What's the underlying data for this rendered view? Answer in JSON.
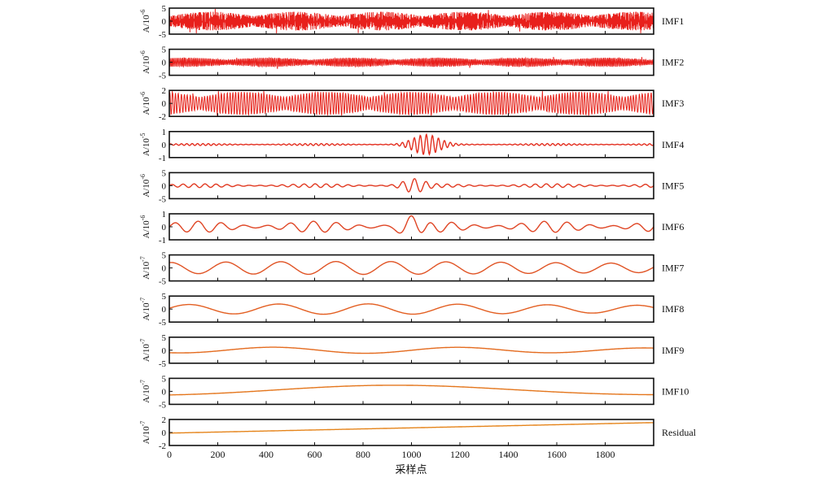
{
  "chart_data": {
    "type": "line",
    "xlabel": "采样点",
    "xlim": [
      0,
      2000
    ],
    "x_ticks": [
      "0",
      "200",
      "400",
      "600",
      "800",
      "1000",
      "1200",
      "1400",
      "1600",
      "1800"
    ],
    "panels": [
      {
        "name": "IMF1",
        "ylabel_base": "A/10",
        "ylabel_exp": "-6",
        "yticks": [
          "5",
          "0",
          "-5"
        ],
        "ylim": [
          -5,
          5
        ],
        "color": "#e8201c",
        "signal": {
          "kind": "noise",
          "amp": 0.45,
          "freq": 0.35
        }
      },
      {
        "name": "IMF2",
        "ylabel_base": "A/10",
        "ylabel_exp": "-6",
        "yticks": [
          "5",
          "0",
          "-5"
        ],
        "ylim": [
          -5,
          5
        ],
        "color": "#e8201c",
        "signal": {
          "kind": "noise",
          "amp": 0.22,
          "freq": 0.17
        }
      },
      {
        "name": "IMF3",
        "ylabel_base": "A/10",
        "ylabel_exp": "-6",
        "yticks": [
          "2",
          "0",
          "-2"
        ],
        "ylim": [
          -2,
          2
        ],
        "color": "#e6251d",
        "signal": {
          "kind": "noise",
          "amp": 0.55,
          "freq": 0.085
        }
      },
      {
        "name": "IMF4",
        "ylabel_base": "A/10",
        "ylabel_exp": "-5",
        "yticks": [
          "1",
          "0",
          "-1"
        ],
        "ylim": [
          -1,
          1
        ],
        "color": "#e32f20",
        "signal": {
          "kind": "burst",
          "amp": 0.08,
          "freq": 0.045,
          "burst_center": 1060,
          "burst_width": 70,
          "burst_amp": 0.9
        }
      },
      {
        "name": "IMF5",
        "ylabel_base": "A/10",
        "ylabel_exp": "-6",
        "yticks": [
          "5",
          "0",
          "-5"
        ],
        "ylim": [
          -5,
          5
        ],
        "color": "#e13a22",
        "signal": {
          "kind": "burst",
          "amp": 0.15,
          "freq": 0.022,
          "burst_center": 1010,
          "burst_width": 60,
          "burst_amp": 0.45
        }
      },
      {
        "name": "IMF6",
        "ylabel_base": "A/10",
        "ylabel_exp": "-6",
        "yticks": [
          "1",
          "0",
          "-1"
        ],
        "ylim": [
          -1,
          1
        ],
        "color": "#df4524",
        "signal": {
          "kind": "burst",
          "amp": 0.45,
          "freq": 0.0105,
          "burst_center": 1000,
          "burst_width": 60,
          "burst_amp": 0.95
        }
      },
      {
        "name": "IMF7",
        "ylabel_base": "A/10",
        "ylabel_exp": "-7",
        "yticks": [
          "5",
          "0",
          "-5"
        ],
        "ylim": [
          -5,
          5
        ],
        "color": "#e05324",
        "signal": {
          "kind": "wave",
          "amp": 0.52,
          "freq": 0.0044,
          "phase": 1.4
        }
      },
      {
        "name": "IMF8",
        "ylabel_base": "A/10",
        "ylabel_exp": "-7",
        "yticks": [
          "5",
          "0",
          "-5"
        ],
        "ylim": [
          -5,
          5
        ],
        "color": "#e35f22",
        "signal": {
          "kind": "wave",
          "amp": 0.42,
          "freq": 0.0027,
          "phase": 0.2
        }
      },
      {
        "name": "IMF9",
        "ylabel_base": "A/10",
        "ylabel_exp": "-7",
        "yticks": [
          "5",
          "0",
          "-5"
        ],
        "ylim": [
          -5,
          5
        ],
        "color": "#e46b1f",
        "signal": {
          "kind": "wave",
          "amp": 0.25,
          "freq": 0.0013,
          "phase": -1.9
        }
      },
      {
        "name": "IMF10",
        "ylabel_base": "A/10",
        "ylabel_exp": "-7",
        "yticks": [
          "5",
          "0",
          "-5"
        ],
        "ylim": [
          -5,
          5
        ],
        "color": "#e4761c",
        "signal": {
          "kind": "wave",
          "amp": 0.45,
          "freq": 0.00045,
          "phase": -1.1,
          "offset": 0.05
        }
      },
      {
        "name": "Residual",
        "ylabel_base": "A/10",
        "ylabel_exp": "-7",
        "yticks": [
          "2",
          "0",
          "-2"
        ],
        "ylim": [
          -2,
          2
        ],
        "color": "#e5841a",
        "signal": {
          "kind": "ramp",
          "start": -0.05,
          "end": 0.8
        }
      }
    ]
  }
}
